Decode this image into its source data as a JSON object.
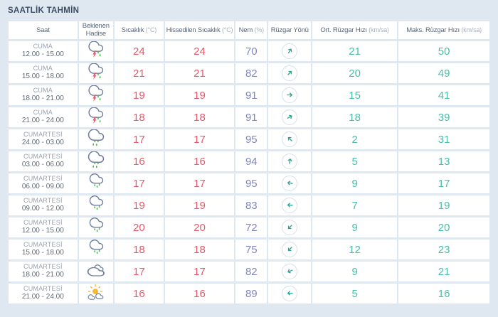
{
  "title": "SAATLİK TAHMİN",
  "colors": {
    "background": "#dfe8f1",
    "title_text": "#3c4d63",
    "temperature_red": "#e8596a",
    "humidity_purple": "#8086c3",
    "wind_teal": "#49bfa9",
    "arrow_teal": "#2ca795",
    "cloud_outline": "#6e7e9c",
    "rain_green": "#55b84e",
    "sun_yellow": "#f7b733"
  },
  "table": {
    "columns": [
      {
        "label": "Saat",
        "unit": ""
      },
      {
        "label": "Beklenen Hadise",
        "unit": ""
      },
      {
        "label": "Sıcaklık",
        "unit": "(°C)"
      },
      {
        "label": "Hissedilen Sıcaklık",
        "unit": "(°C)"
      },
      {
        "label": "Nem",
        "unit": "(%)"
      },
      {
        "label": "Rüzgar Yönü",
        "unit": ""
      },
      {
        "label": "Ort. Rüzgar Hızı",
        "unit": "(km/sa)"
      },
      {
        "label": "Maks. Rüzgar Hızı",
        "unit": "(km/sa)"
      }
    ],
    "rows": [
      {
        "day": "CUMA",
        "hours": "12.00 - 15.00",
        "icon": "thunderstorm",
        "temp": "24",
        "feels": "24",
        "humidity": "70",
        "wind_dir_deg": -55,
        "wind_avg": "21",
        "wind_max": "50"
      },
      {
        "day": "CUMA",
        "hours": "15.00 - 18.00",
        "icon": "thunderstorm",
        "temp": "21",
        "feels": "21",
        "humidity": "82",
        "wind_dir_deg": -45,
        "wind_avg": "20",
        "wind_max": "49"
      },
      {
        "day": "CUMA",
        "hours": "18.00 - 21.00",
        "icon": "thunderstorm",
        "temp": "19",
        "feels": "19",
        "humidity": "91",
        "wind_dir_deg": 0,
        "wind_avg": "15",
        "wind_max": "41"
      },
      {
        "day": "CUMA",
        "hours": "21.00 - 24.00",
        "icon": "thunderstorm",
        "temp": "18",
        "feels": "18",
        "humidity": "91",
        "wind_dir_deg": -28,
        "wind_avg": "18",
        "wind_max": "39"
      },
      {
        "day": "CUMARTESİ",
        "hours": "24.00 - 03.00",
        "icon": "heavy-rain",
        "temp": "17",
        "feels": "17",
        "humidity": "95",
        "wind_dir_deg": -135,
        "wind_avg": "2",
        "wind_max": "31"
      },
      {
        "day": "CUMARTESİ",
        "hours": "03.00 - 06.00",
        "icon": "heavy-rain",
        "temp": "16",
        "feels": "16",
        "humidity": "94",
        "wind_dir_deg": -80,
        "wind_avg": "5",
        "wind_max": "13"
      },
      {
        "day": "CUMARTESİ",
        "hours": "06.00 - 09.00",
        "icon": "light-rain",
        "temp": "17",
        "feels": "17",
        "humidity": "95",
        "wind_dir_deg": -168,
        "wind_avg": "9",
        "wind_max": "17"
      },
      {
        "day": "CUMARTESİ",
        "hours": "09.00 - 12.00",
        "icon": "light-rain",
        "temp": "19",
        "feels": "19",
        "humidity": "83",
        "wind_dir_deg": -175,
        "wind_avg": "7",
        "wind_max": "19"
      },
      {
        "day": "CUMARTESİ",
        "hours": "12.00 - 15.00",
        "icon": "light-rain",
        "temp": "20",
        "feels": "20",
        "humidity": "72",
        "wind_dir_deg": 135,
        "wind_avg": "9",
        "wind_max": "20"
      },
      {
        "day": "CUMARTESİ",
        "hours": "15.00 - 18.00",
        "icon": "light-rain",
        "temp": "18",
        "feels": "18",
        "humidity": "75",
        "wind_dir_deg": 135,
        "wind_avg": "12",
        "wind_max": "23"
      },
      {
        "day": "CUMARTESİ",
        "hours": "18.00 - 21.00",
        "icon": "cloudy",
        "temp": "17",
        "feels": "17",
        "humidity": "82",
        "wind_dir_deg": 157,
        "wind_avg": "9",
        "wind_max": "21"
      },
      {
        "day": "CUMARTESİ",
        "hours": "21.00 - 24.00",
        "icon": "partly-cloudy",
        "temp": "16",
        "feels": "16",
        "humidity": "89",
        "wind_dir_deg": 180,
        "wind_avg": "5",
        "wind_max": "16"
      }
    ]
  }
}
